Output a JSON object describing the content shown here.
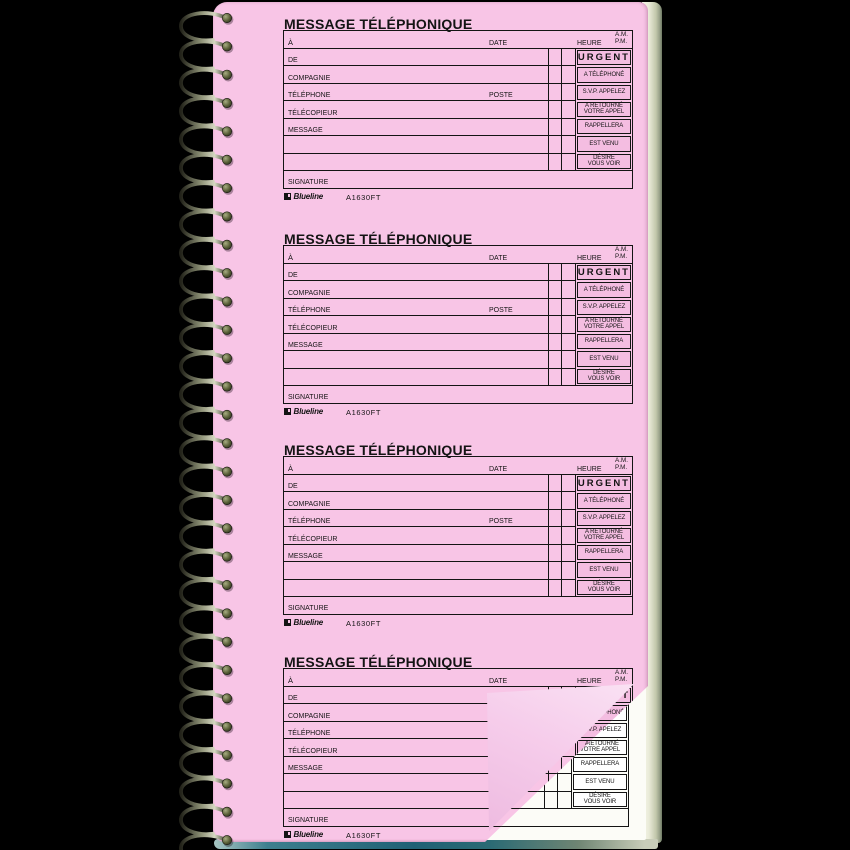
{
  "product": {
    "brand": "Blueline",
    "code": "A1630FT",
    "visible_form_count": 4,
    "page_color": "#f8c5e6",
    "ink_color": "#141414",
    "cover_color": "#206375"
  },
  "form": {
    "title": "MESSAGE TÉLÉPHONIQUE",
    "header": {
      "to": "À",
      "date": "DATE",
      "time": "HEURE",
      "am": "A.M.",
      "pm": "P.M."
    },
    "fields": [
      "DE",
      "COMPAGNIE",
      "TÉLÉPHONE",
      "TÉLÉCOPIEUR",
      "MESSAGE",
      "",
      ""
    ],
    "poste": "POSTE",
    "checks": [
      {
        "label": "URGENT"
      },
      {
        "label": "A TÉLÉPHONÉ"
      },
      {
        "label": "S.V.P. APPELEZ"
      },
      {
        "label": "A RETOURNÉ",
        "label2": "VOTRE APPEL"
      },
      {
        "label": "RAPPELLERA"
      },
      {
        "label": "EST VENU"
      },
      {
        "label": "DÉSIRE",
        "label2": "VOUS VOIR"
      }
    ],
    "signature": "SIGNATURE",
    "brand": "Blueline",
    "code": "A1630FT"
  }
}
